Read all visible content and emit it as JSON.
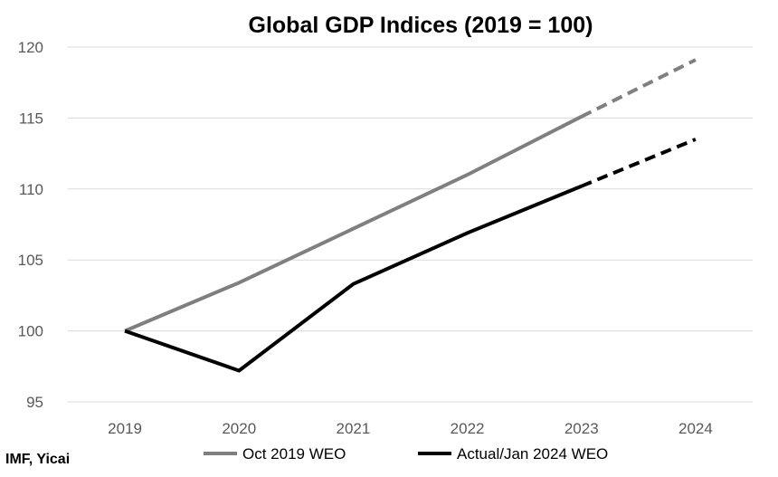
{
  "chart_data": {
    "type": "line",
    "title": "Global GDP Indices (2019 = 100)",
    "xlabel": "",
    "ylabel": "",
    "categories": [
      "2019",
      "2020",
      "2021",
      "2022",
      "2023",
      "2024"
    ],
    "ylim": [
      95,
      120
    ],
    "yticks": [
      95,
      100,
      105,
      110,
      115,
      120
    ],
    "grid": true,
    "legend": "bottom",
    "source": "IMF, Yicai",
    "series": [
      {
        "name": "Oct 2019 WEO",
        "color": "#7f7f7f",
        "values": [
          100,
          103.4,
          107.2,
          111.0,
          115.1,
          119.1
        ],
        "dashed_from_index": 4
      },
      {
        "name": "Actual/Jan 2024 WEO",
        "color": "#000000",
        "values": [
          100,
          97.2,
          103.3,
          106.9,
          110.2,
          113.5
        ],
        "dashed_from_index": 4
      }
    ]
  }
}
